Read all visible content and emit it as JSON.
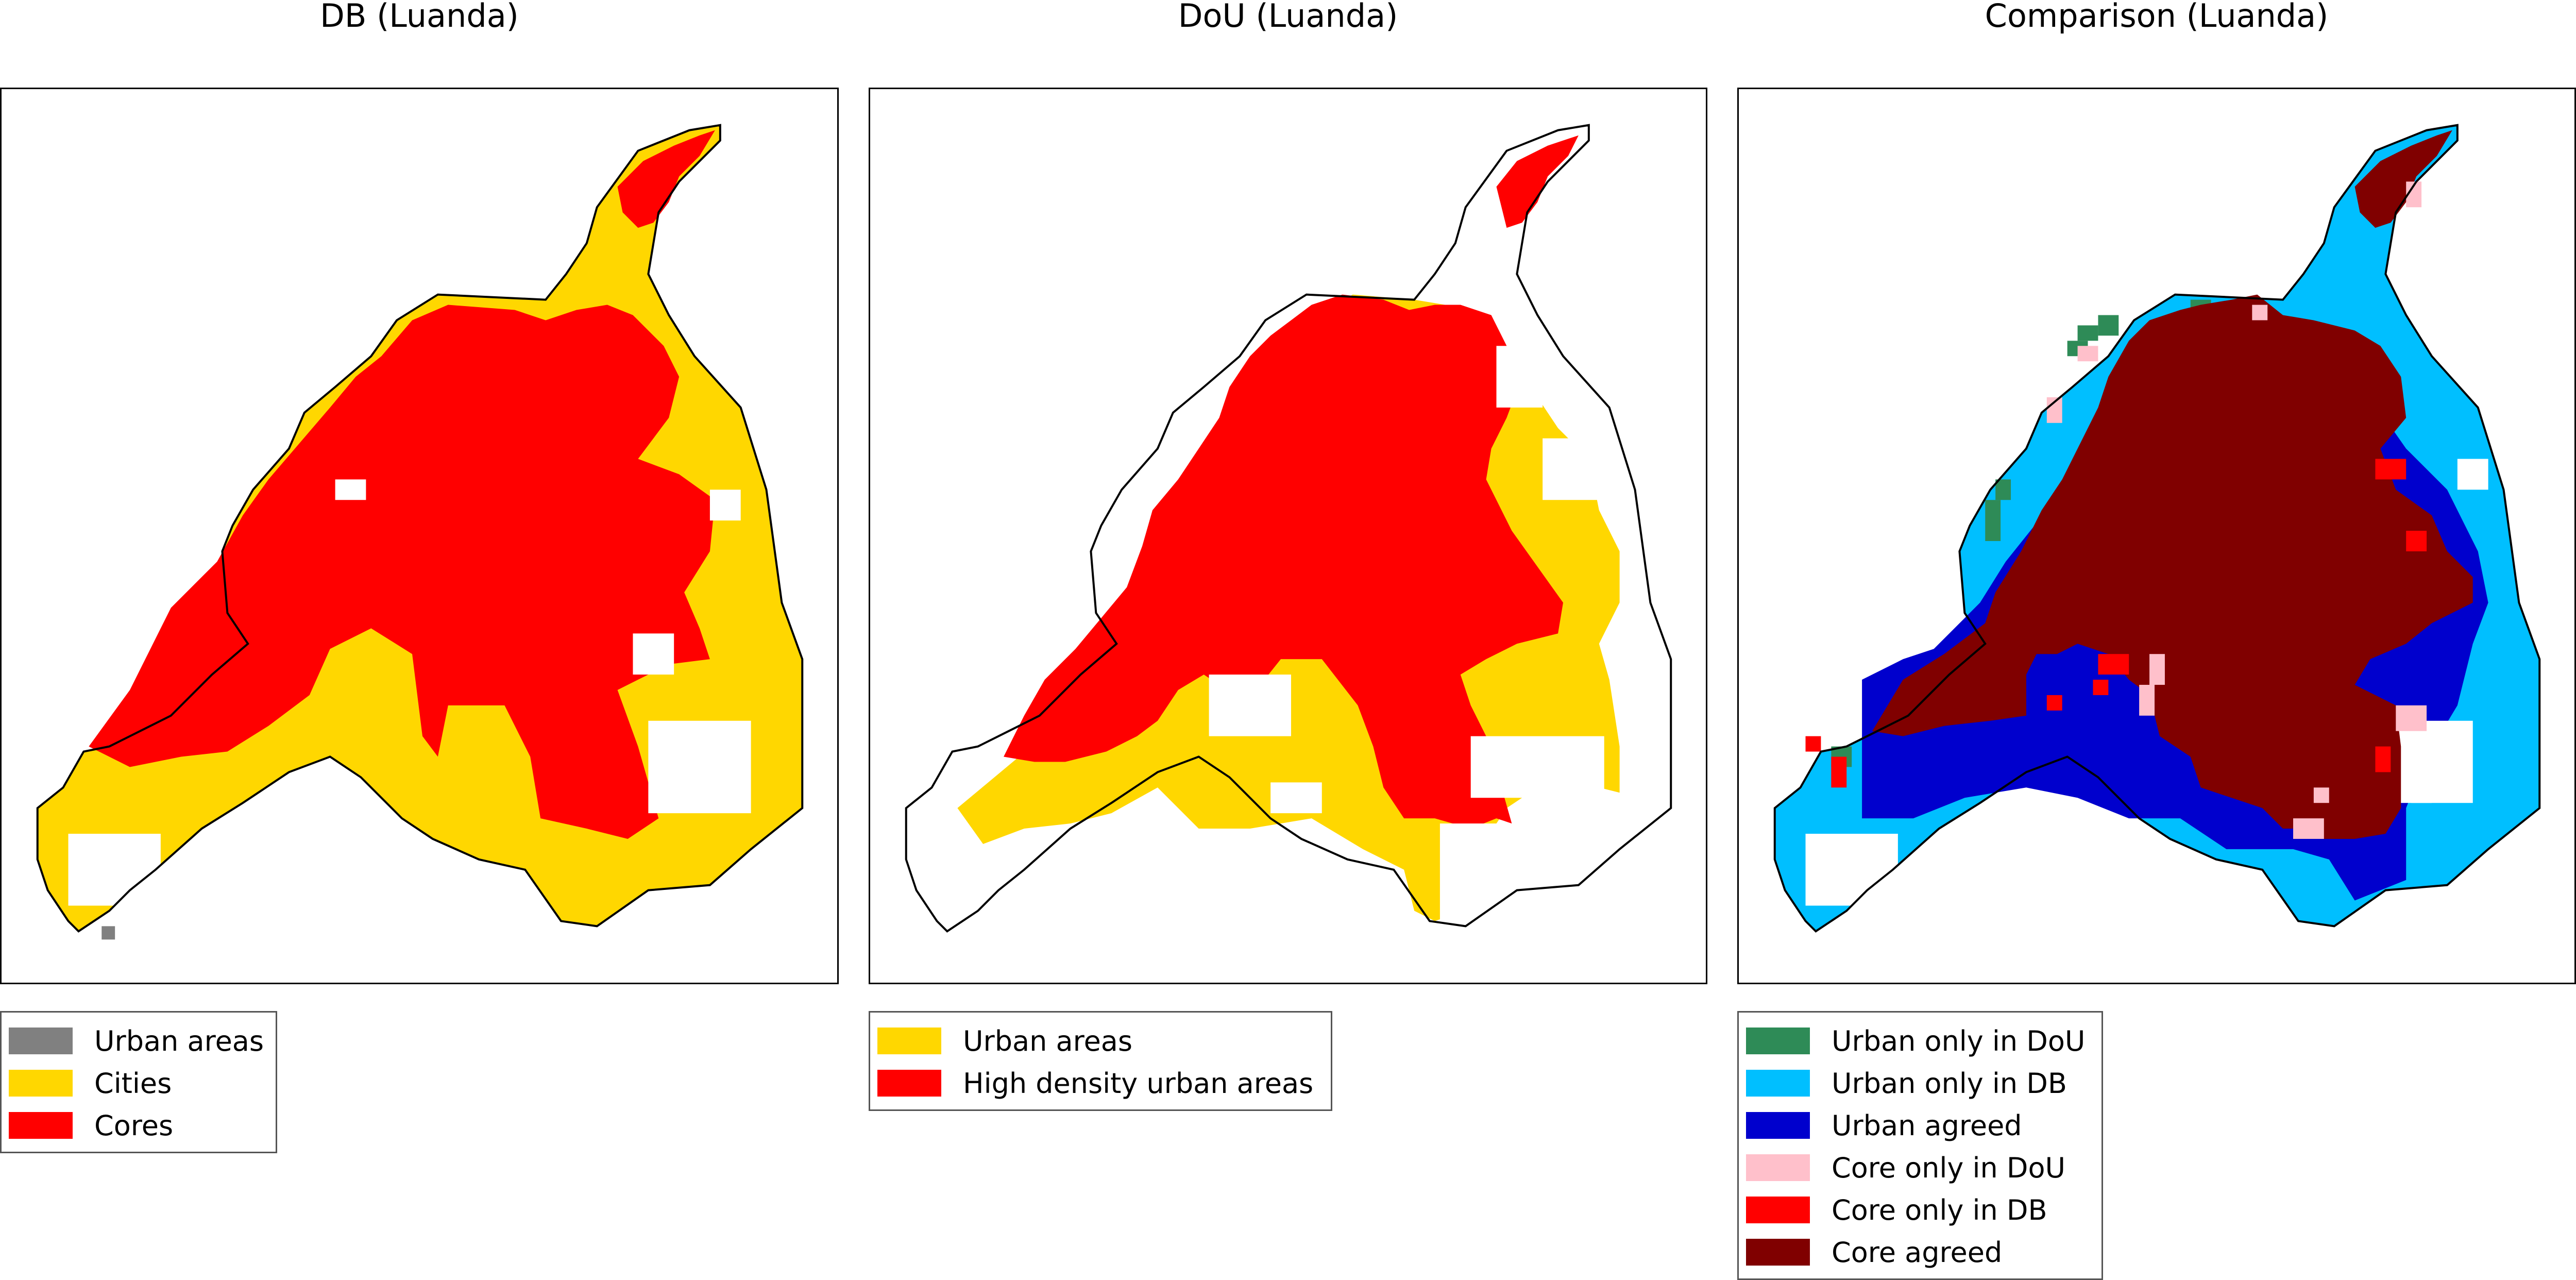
{
  "panels": [
    {
      "id": "db",
      "title": "DB (Luanda)",
      "legend": [
        {
          "label": "Urban areas",
          "color": "#808080"
        },
        {
          "label": "Cities",
          "color": "#ffd700"
        },
        {
          "label": "Cores",
          "color": "#ff0000"
        }
      ]
    },
    {
      "id": "dou",
      "title": "DoU (Luanda)",
      "legend": [
        {
          "label": "Urban areas",
          "color": "#ffd700"
        },
        {
          "label": "High density urban areas",
          "color": "#ff0000"
        }
      ]
    },
    {
      "id": "cmp",
      "title": "Comparison (Luanda)",
      "legend": [
        {
          "label": "Urban only in DoU",
          "color": "#2e8b57"
        },
        {
          "label": "Urban only in DB",
          "color": "#00bfff"
        },
        {
          "label": "Urban agreed",
          "color": "#0000cd"
        },
        {
          "label": "Core only in DoU",
          "color": "#ffc0cb"
        },
        {
          "label": "Core only in DB",
          "color": "#ff0000"
        },
        {
          "label": "Core agreed",
          "color": "#800000"
        }
      ]
    }
  ]
}
